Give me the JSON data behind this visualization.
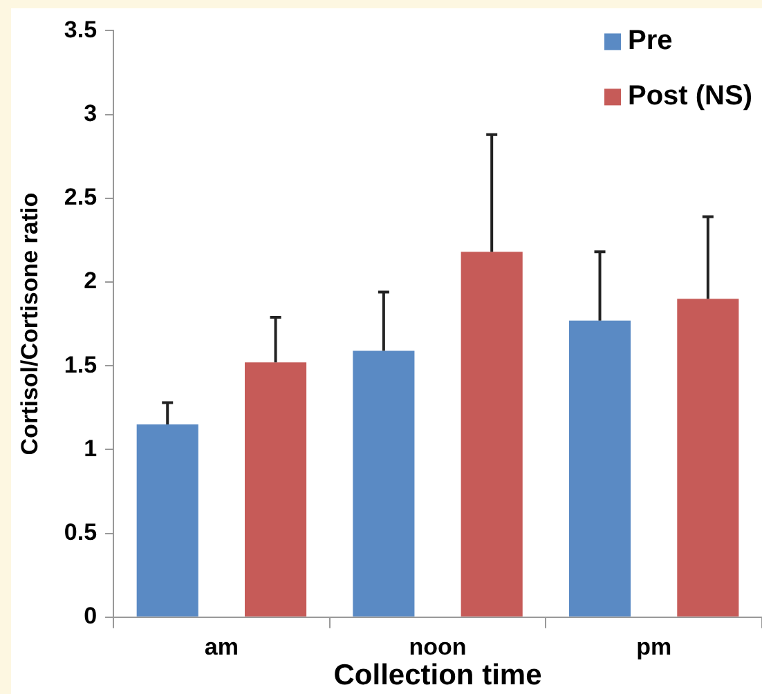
{
  "chart_data": {
    "type": "bar",
    "xlabel": "Collection time",
    "ylabel": "Cortisol/Cortisone ratio",
    "categories": [
      "am",
      "noon",
      "pm"
    ],
    "series": [
      {
        "name": "Pre",
        "color": "#5a8ac4",
        "values": [
          1.15,
          1.59,
          1.77
        ],
        "errors": [
          [
            1.15,
            1.28
          ],
          [
            1.59,
            1.94
          ],
          [
            1.77,
            2.18
          ]
        ]
      },
      {
        "name": "Post (NS)",
        "color": "#c65b58",
        "values": [
          1.52,
          2.18,
          1.9
        ],
        "errors": [
          [
            1.52,
            1.79
          ],
          [
            2.18,
            2.88
          ],
          [
            1.9,
            2.39
          ]
        ]
      }
    ],
    "ylim": [
      0,
      3.5
    ],
    "yticks": [
      0,
      0.5,
      1,
      1.5,
      2,
      2.5,
      3,
      3.5
    ],
    "grid": false,
    "legend": "top right"
  }
}
